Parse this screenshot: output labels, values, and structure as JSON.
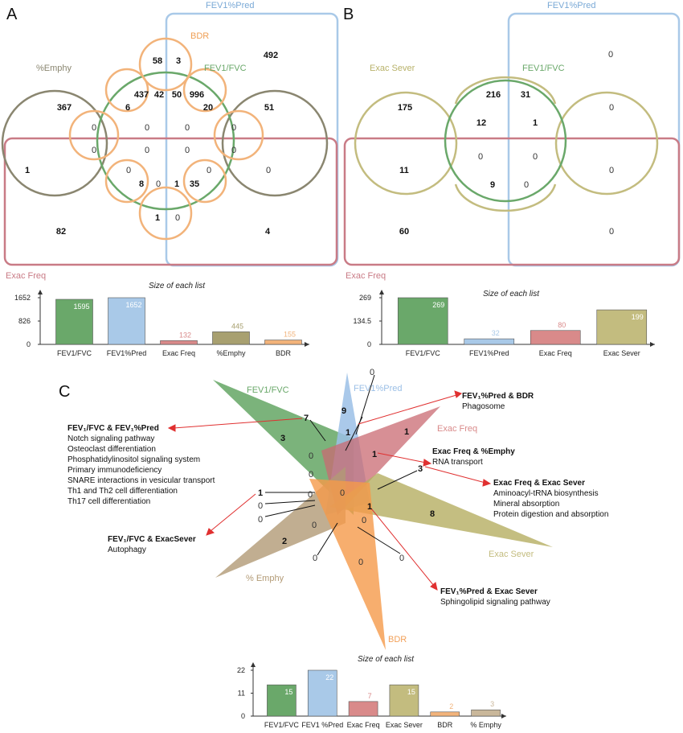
{
  "panels": {
    "a": "A",
    "b": "B",
    "c": "C"
  },
  "panel_a": {
    "sets": {
      "fev1pred": "FEV1%Pred",
      "bdr": "BDR",
      "emphy": "%Emphy",
      "fev1fvc": "FEV1/FVC",
      "exacfreq": "Exac Freq"
    },
    "counts": {
      "c1": "58",
      "c2": "3",
      "c3": "492",
      "c4": "437",
      "c5": "42",
      "c6": "50",
      "c7": "996",
      "c8": "367",
      "c9": "6",
      "c10": "20",
      "c11": "51",
      "c12": "0",
      "c13": "0",
      "c14": "0",
      "c15": "0",
      "c16": "0",
      "c17": "0",
      "c18": "0",
      "c19": "0",
      "c20": "1",
      "c21": "0",
      "c22": "0",
      "c23": "0",
      "c24": "8",
      "c25": "0",
      "c26": "1",
      "c27": "35",
      "c28": "1",
      "c29": "0",
      "c30": "82",
      "c31": "4"
    }
  },
  "panel_b": {
    "sets": {
      "fev1pred": "FEV1%Pred",
      "exacsever": "Exac Sever",
      "fev1fvc": "FEV1/FVC",
      "exacfreq": "Exac Freq"
    },
    "counts": {
      "c1": "0",
      "c2": "216",
      "c3": "31",
      "c4": "175",
      "c5": "12",
      "c6": "1",
      "c7": "0",
      "c8": "0",
      "c9": "0",
      "c10": "11",
      "c11": "0",
      "c12": "9",
      "c13": "0",
      "c14": "60",
      "c15": "0"
    }
  },
  "panel_c": {
    "sets": {
      "fev1fvc": "FEV1/FVC",
      "fev1pred": "FEV1%Pred",
      "exacfreq": "Exac Freq",
      "exacsever": "Exac Sever",
      "emphy": "% Emphy",
      "bdr": "BDR"
    },
    "counts": {
      "c1": "9",
      "c2": "7",
      "c3": "1",
      "c4": "0",
      "c5": "1",
      "c6": "3",
      "c7": "0",
      "c8": "1",
      "c9": "3",
      "c10": "0",
      "c11": "1",
      "c12": "0",
      "c13": "0",
      "c14": "0",
      "c15": "1",
      "c16": "0",
      "c17": "8",
      "c18": "0",
      "c19": "2",
      "c20": "0",
      "c21": "0",
      "c22": "0",
      "c23": "0"
    },
    "annotations": [
      {
        "title": "FEV₁/FVC & FEV₁%Pred",
        "lines": [
          "Notch signaling pathway",
          "Osteoclast differentiation",
          "Phosphatidylinositol signaling system",
          "Primary immunodeficiency",
          "SNARE interactions in vesicular transport",
          "Th1 and Th2 cell differentiation",
          "Th17 cell differentiation"
        ]
      },
      {
        "title": "FEV₁%Pred & BDR",
        "lines": [
          "Phagosome"
        ]
      },
      {
        "title": "Exac Freq & %Emphy",
        "lines": [
          "RNA transport"
        ]
      },
      {
        "title": "Exac Freq & Exac Sever",
        "lines": [
          "Aminoacyl-tRNA biosynthesis",
          "Mineral absorption",
          "Protein digestion and absorption"
        ]
      },
      {
        "title": "FEV₁/FVC & ExacSever",
        "lines": [
          "Autophagy"
        ]
      },
      {
        "title": "FEV₁%Pred & Exac Sever",
        "lines": [
          "Sphingolipid signaling pathway"
        ]
      }
    ]
  },
  "chart_data": [
    {
      "type": "bar",
      "title": "Size of each list",
      "categories": [
        "FEV1/FVC",
        "FEV1%Pred",
        "Exac Freq",
        "%Emphy",
        "BDR"
      ],
      "values": [
        1595,
        1652,
        132,
        445,
        155
      ],
      "colors": [
        "#6aa86a",
        "#a9c9e8",
        "#d98a8a",
        "#a8a070",
        "#f2b37a"
      ],
      "ylim": [
        0,
        1652
      ],
      "yticks": [
        "1652",
        "826",
        "0"
      ]
    },
    {
      "type": "bar",
      "title": "Size of each list",
      "categories": [
        "FEV1/FVC",
        "FEV1%Pred",
        "Exac Freq",
        "Exac Sever"
      ],
      "values": [
        269,
        32,
        80,
        199
      ],
      "colors": [
        "#6aa86a",
        "#a9c9e8",
        "#d98a8a",
        "#c3bc7f"
      ],
      "ylim": [
        0,
        269
      ],
      "yticks": [
        "269",
        "134.5",
        "0"
      ]
    },
    {
      "type": "bar",
      "title": "Size of each list",
      "categories": [
        "FEV1/FVC",
        "FEV1 %Pred",
        "Exac Freq",
        "Exac Sever",
        "BDR",
        "% Emphy"
      ],
      "values": [
        15,
        22,
        7,
        15,
        2,
        3
      ],
      "colors": [
        "#6aa86a",
        "#a9c9e8",
        "#d98a8a",
        "#c3bc7f",
        "#f2b37a",
        "#c9b79a"
      ],
      "ylim": [
        0,
        22
      ],
      "yticks": [
        "22",
        "11",
        "0"
      ]
    }
  ]
}
